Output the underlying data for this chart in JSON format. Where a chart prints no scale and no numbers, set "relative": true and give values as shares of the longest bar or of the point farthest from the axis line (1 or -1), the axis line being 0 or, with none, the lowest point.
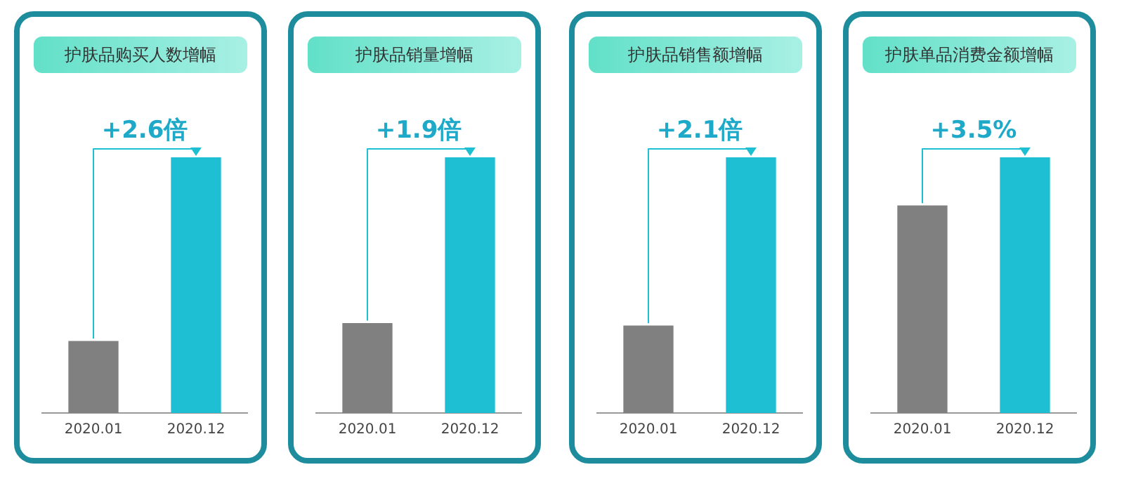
{
  "chart_data": [
    {
      "type": "bar",
      "title": "护肤品购买人数增幅",
      "categories": [
        "2020.01",
        "2020.12"
      ],
      "values": [
        0.28,
        1
      ],
      "colors": [
        "#808080",
        "#1fbfd3"
      ],
      "relative": true,
      "annotations": [
        "+2.6倍"
      ]
    },
    {
      "type": "bar",
      "title": "护肤品销量增幅",
      "categories": [
        "2020.01",
        "2020.12"
      ],
      "values": [
        0.35,
        1
      ],
      "colors": [
        "#808080",
        "#1fbfd3"
      ],
      "relative": true,
      "annotations": [
        "+1.9倍"
      ]
    },
    {
      "type": "bar",
      "title": "护肤品销售额增幅",
      "categories": [
        "2020.01",
        "2020.12"
      ],
      "values": [
        0.34,
        1
      ],
      "colors": [
        "#808080",
        "#1fbfd3"
      ],
      "relative": true,
      "annotations": [
        "+2.1倍"
      ]
    },
    {
      "type": "bar",
      "title": "护肤单品消费金额增幅",
      "categories": [
        "2020.01",
        "2020.12"
      ],
      "values": [
        0.81,
        1
      ],
      "colors": [
        "#808080",
        "#1fbfd3"
      ],
      "relative": true,
      "annotations": [
        "+3.5%"
      ]
    }
  ]
}
